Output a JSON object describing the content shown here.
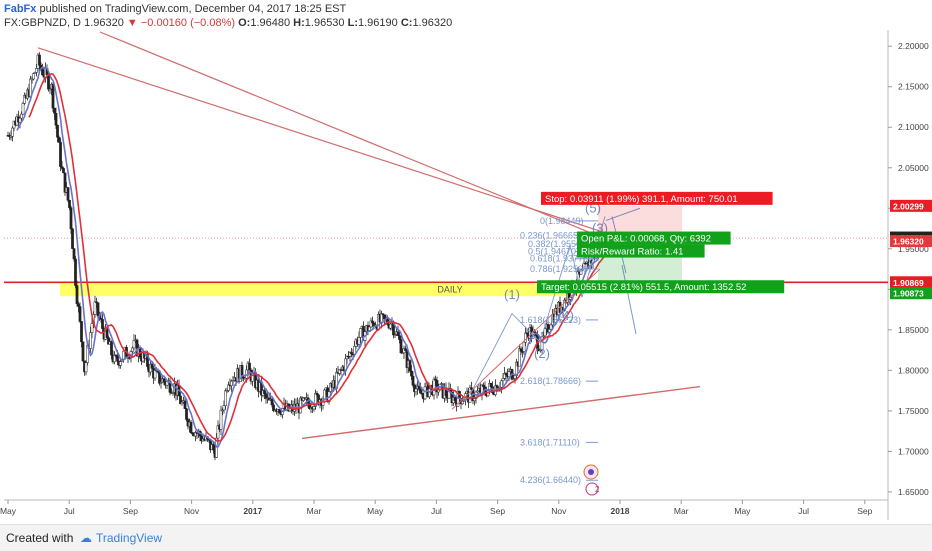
{
  "header": {
    "brand": "FabFx",
    "published": " published on TradingView.com, December 04, 2017 18:25 EST",
    "symbol": "FX:GBPNZD, D",
    "last": "1.96320",
    "change": "▼ −0.00160 (−0.08%)",
    "o": "1.96480",
    "h": "1.96530",
    "l": "1.96190",
    "c": "1.96320"
  },
  "footer": {
    "created": "Created with",
    "brand": "TradingView"
  },
  "colors": {
    "candle_up": "#ffffff",
    "candle_down": "#222222",
    "ma_red": "#e0303a",
    "ma_blue": "#6b73c9",
    "trend": "#d36b6b",
    "fib": "#7a98cf",
    "zone": "#ffff66",
    "stop": "#ec1c24",
    "target": "#11a11b",
    "support": "#e02020"
  },
  "chart_data": {
    "type": "candlestick",
    "x_axis": {
      "ticks": [
        "May",
        "Jul",
        "Sep",
        "Nov",
        "2017",
        "Mar",
        "May",
        "Jul",
        "Sep",
        "Nov",
        "2018",
        "Mar",
        "May",
        "Jul",
        "Sep"
      ]
    },
    "y_axis": {
      "range": [
        1.64,
        2.22
      ],
      "ticks": [
        "2.20000",
        "2.15000",
        "2.10000",
        "2.05000",
        "2.00000",
        "1.95000",
        "1.90000",
        "1.85000",
        "1.80000",
        "1.75000",
        "1.70000",
        "1.65000"
      ]
    },
    "price_badges": [
      {
        "label": "2.00299",
        "value": 2.00299,
        "color": "#ec1c24"
      },
      {
        "label": "1.96388",
        "value": 1.96388,
        "color": "#222222"
      },
      {
        "label": "1.96320",
        "value": 1.9632,
        "color": "#e03a3a"
      },
      {
        "label": "1.90869",
        "value": 1.90869,
        "color": "#e02020"
      },
      {
        "label": "1.90873",
        "value": 1.90873,
        "color": "#11a11b"
      }
    ],
    "support_level": 1.90869,
    "zone": {
      "label": "DAILY",
      "from": 1.8915,
      "to": 1.907
    },
    "fib_levels": [
      {
        "label": "0(1.98449)",
        "value": 1.98449
      },
      {
        "label": "0.236(1.96665)",
        "value": 1.96665
      },
      {
        "label": "0.382(1.95562)",
        "value": 1.95562
      },
      {
        "label": "0.5(1.94670)",
        "value": 1.9467
      },
      {
        "label": "0.618(1.93778)",
        "value": 1.93778
      },
      {
        "label": "0.786(1.92508)",
        "value": 1.92508
      },
      {
        "label": "1.618(1.86223)",
        "value": 1.86223
      },
      {
        "label": "2.618(1.78666)",
        "value": 1.78666
      },
      {
        "label": "3.618(1.71110)",
        "value": 1.7111
      },
      {
        "label": "4.236(1.66440)",
        "value": 1.6644
      }
    ],
    "waves": [
      "(1)",
      "(2)",
      "(3)",
      "(4)",
      "(5)"
    ],
    "position": {
      "stop_label": "Stop: 0.03911 (1.99%) 391.1, Amount: 750.01",
      "pnl_label": "Open P&L: 0.00068, Qty: 6392",
      "rr_label": "Risk/Reward Ratio: 1.41",
      "target_label": "Target: 0.05515 (2.81%) 551.5, Amount: 1352.52",
      "entry": 1.96388,
      "stop": 2.00299,
      "target": 1.90873
    },
    "annotation_badge": "2"
  }
}
